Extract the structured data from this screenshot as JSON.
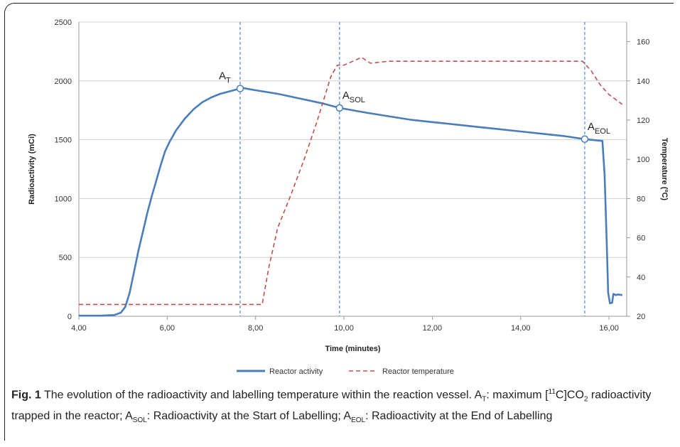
{
  "chart_data": {
    "type": "line",
    "xlabel": "Time (minutes)",
    "ylabel": "Radioactivity (mCi)",
    "y2label": "Temperature (ºC)",
    "xlim": [
      4,
      16.4
    ],
    "ylim": [
      0,
      2500
    ],
    "y2lim": [
      20,
      170
    ],
    "x_ticks": [
      "4,00",
      "6,00",
      "8,00",
      "10,00",
      "12,00",
      "14,00",
      "16,00"
    ],
    "x_tick_values": [
      4,
      6,
      8,
      10,
      12,
      14,
      16
    ],
    "y_ticks": [
      "0",
      "500",
      "1000",
      "1500",
      "2000",
      "2500"
    ],
    "y_tick_values": [
      0,
      500,
      1000,
      1500,
      2000,
      2500
    ],
    "y2_ticks": [
      "20",
      "40",
      "60",
      "80",
      "100",
      "120",
      "140",
      "160"
    ],
    "y2_tick_values": [
      20,
      40,
      60,
      80,
      100,
      120,
      140,
      160
    ],
    "grid": true,
    "legend_position": "bottom",
    "series": [
      {
        "name": "Reactor activity",
        "axis": "left",
        "color": "#4a7ebb",
        "style": "solid",
        "x": [
          4.0,
          4.5,
          4.8,
          4.95,
          5.05,
          5.15,
          5.25,
          5.35,
          5.45,
          5.55,
          5.65,
          5.75,
          5.85,
          5.95,
          6.05,
          6.2,
          6.4,
          6.6,
          6.8,
          7.0,
          7.2,
          7.4,
          7.6,
          7.7,
          8.0,
          8.5,
          9.0,
          9.5,
          9.9,
          10.5,
          11.0,
          11.5,
          12.0,
          12.5,
          13.0,
          13.5,
          14.0,
          14.5,
          15.0,
          15.45,
          15.85,
          15.9,
          15.95,
          15.98,
          16.02,
          16.07,
          16.1,
          16.15,
          16.2,
          16.3
        ],
        "y": [
          5,
          5,
          10,
          30,
          80,
          200,
          380,
          560,
          720,
          880,
          1020,
          1150,
          1280,
          1400,
          1480,
          1580,
          1680,
          1760,
          1820,
          1860,
          1890,
          1910,
          1930,
          1940,
          1920,
          1890,
          1850,
          1810,
          1770,
          1730,
          1700,
          1670,
          1650,
          1630,
          1610,
          1590,
          1570,
          1550,
          1530,
          1505,
          1490,
          1200,
          600,
          200,
          110,
          115,
          190,
          180,
          185,
          180
        ]
      },
      {
        "name": "Reactor temperature",
        "axis": "right",
        "color": "#c0504d",
        "style": "dashed",
        "x": [
          4.0,
          8.15,
          8.3,
          8.5,
          8.8,
          9.1,
          9.4,
          9.7,
          9.85,
          10.0,
          10.2,
          10.4,
          10.6,
          11.0,
          12.0,
          13.0,
          14.0,
          15.0,
          15.4,
          15.6,
          15.8,
          16.0,
          16.3
        ],
        "y": [
          26,
          26,
          45,
          65,
          82,
          100,
          120,
          142,
          148,
          148,
          150,
          152,
          149,
          150,
          150,
          150,
          150,
          150,
          150,
          145,
          138,
          133,
          128
        ]
      }
    ],
    "vlines": [
      7.65,
      9.9,
      15.45
    ],
    "markers": [
      {
        "label": "A",
        "sub": "T",
        "x": 7.65,
        "y": 1935
      },
      {
        "label": "A",
        "sub": "SOL",
        "x": 9.9,
        "y": 1770
      },
      {
        "label": "A",
        "sub": "EOL",
        "x": 15.45,
        "y": 1505
      }
    ]
  },
  "caption": {
    "fig_label": "Fig. 1",
    "text_1": " The evolution of the radioactivity and labelling temperature within the reaction vessel. A",
    "sub_1": "T",
    "text_2": ": maximum [",
    "sup_1": "11",
    "text_3": "C]CO",
    "sub_2": "2",
    "text_4": " radioactivity trapped in the reactor; A",
    "sub_3": "SOL",
    "text_5": ": Radioactivity at the Start of Labelling; A",
    "sub_4": "EOL",
    "text_6": ": Radioactivity at the End of Labelling"
  }
}
